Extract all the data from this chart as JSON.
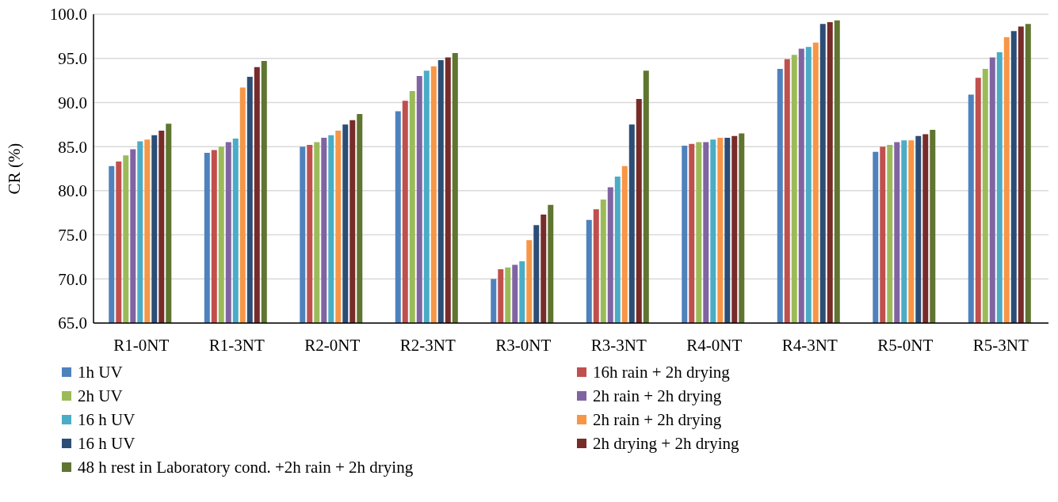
{
  "chart_data": {
    "type": "bar",
    "ylabel": "CR (%)",
    "categories": [
      "R1-0NT",
      "R1-3NT",
      "R2-0NT",
      "R2-3NT",
      "R3-0NT",
      "R3-3NT",
      "R4-0NT",
      "R4-3NT",
      "R5-0NT",
      "R5-3NT"
    ],
    "ylim": [
      65,
      100
    ],
    "yticks": [
      {
        "value": 65,
        "label": "65.0"
      },
      {
        "value": 70,
        "label": "70.0"
      },
      {
        "value": 75,
        "label": "75.0"
      },
      {
        "value": 80,
        "label": "80.0"
      },
      {
        "value": 85,
        "label": "85.0"
      },
      {
        "value": 90,
        "label": "90.0"
      },
      {
        "value": 95,
        "label": "95.0"
      },
      {
        "value": 100,
        "label": "100.0"
      }
    ],
    "grid": "y",
    "legend": "bottom",
    "series": [
      {
        "name": "1h UV",
        "color": "#4f81bd",
        "values": [
          82.8,
          84.3,
          85.0,
          89.0,
          70.0,
          76.7,
          85.1,
          93.8,
          84.4,
          90.9
        ]
      },
      {
        "name": "16h rain + 2h drying",
        "color": "#c0504d",
        "values": [
          83.3,
          84.6,
          85.2,
          90.2,
          71.1,
          77.9,
          85.3,
          94.9,
          85.0,
          92.8
        ]
      },
      {
        "name": "2h UV",
        "color": "#9bbb59",
        "values": [
          84.0,
          85.0,
          85.5,
          91.3,
          71.3,
          79.0,
          85.5,
          95.4,
          85.2,
          93.8
        ]
      },
      {
        "name": "2h rain + 2h drying",
        "color": "#8064a2",
        "values": [
          84.7,
          85.5,
          86.0,
          93.0,
          71.6,
          80.4,
          85.5,
          96.1,
          85.5,
          95.1
        ]
      },
      {
        "name": "16 h UV",
        "color": "#4bacc6",
        "values": [
          85.6,
          85.9,
          86.3,
          93.6,
          72.0,
          81.6,
          85.8,
          96.3,
          85.7,
          95.7
        ]
      },
      {
        "name": "2h rain + 2h drying",
        "color": "#f79646",
        "values": [
          85.8,
          91.7,
          86.8,
          94.1,
          74.4,
          82.8,
          86.0,
          96.8,
          85.7,
          97.4
        ]
      },
      {
        "name": "16 h UV",
        "color": "#2c4d75",
        "values": [
          86.3,
          92.9,
          87.5,
          94.8,
          76.1,
          87.5,
          86.0,
          98.9,
          86.2,
          98.1
        ]
      },
      {
        "name": "2h drying + 2h drying",
        "color": "#772c2a",
        "values": [
          86.8,
          94.0,
          88.0,
          95.1,
          77.3,
          90.4,
          86.2,
          99.1,
          86.4,
          98.6
        ]
      },
      {
        "name": "48 h rest in Laboratory cond. +2h rain + 2h drying",
        "color": "#5f7530",
        "values": [
          87.6,
          94.7,
          88.7,
          95.6,
          78.4,
          93.6,
          86.5,
          99.3,
          86.9,
          98.9
        ]
      }
    ]
  }
}
